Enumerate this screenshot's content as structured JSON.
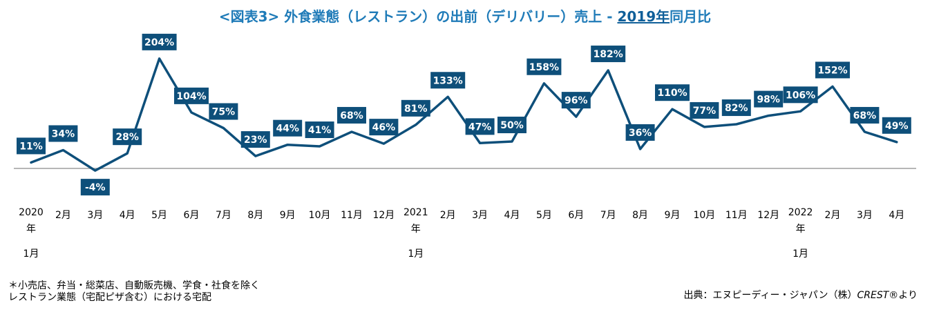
{
  "title": {
    "prefix": "<図表3> 外食業態（レストラン）の出前（デリバリー）売上 - ",
    "highlight": "2019年",
    "suffix": "同月比"
  },
  "footnote": {
    "line1": "＊小売店、弁当・総菜店、自動販売機、学食・社食を除く",
    "line2": "レストラン業態（宅配ピザ含む）における宅配"
  },
  "source": {
    "prefix": "出典：エヌピーディー・ジャパン（株）",
    "brand": "CREST",
    "suffix": "®より"
  },
  "colors": {
    "line": "#0e4f7a",
    "label_bg": "#0e4f7a",
    "label_text": "#ffffff",
    "title": "#1f7bb8",
    "baseline": "#9e9e9e"
  },
  "chart_data": {
    "type": "line",
    "categories": [
      "2020年1月",
      "2月",
      "3月",
      "4月",
      "5月",
      "6月",
      "7月",
      "8月",
      "9月",
      "10月",
      "11月",
      "12月",
      "2021年1月",
      "2月",
      "3月",
      "4月",
      "5月",
      "6月",
      "7月",
      "8月",
      "9月",
      "10月",
      "11月",
      "12月",
      "2022年1月",
      "2月",
      "3月",
      "4月"
    ],
    "tick_labels": [
      [
        "2020",
        "年",
        "1月"
      ],
      [
        "2月"
      ],
      [
        "3月"
      ],
      [
        "4月"
      ],
      [
        "5月"
      ],
      [
        "6月"
      ],
      [
        "7月"
      ],
      [
        "8月"
      ],
      [
        "9月"
      ],
      [
        "10月"
      ],
      [
        "11月"
      ],
      [
        "12月"
      ],
      [
        "2021",
        "年",
        "1月"
      ],
      [
        "2月"
      ],
      [
        "3月"
      ],
      [
        "4月"
      ],
      [
        "5月"
      ],
      [
        "6月"
      ],
      [
        "7月"
      ],
      [
        "8月"
      ],
      [
        "9月"
      ],
      [
        "10月"
      ],
      [
        "11月"
      ],
      [
        "12月"
      ],
      [
        "2022",
        "年",
        "1月"
      ],
      [
        "2月"
      ],
      [
        "3月"
      ],
      [
        "4月"
      ]
    ],
    "values": [
      11,
      34,
      -4,
      28,
      204,
      104,
      75,
      23,
      44,
      41,
      68,
      46,
      81,
      133,
      47,
      50,
      158,
      96,
      182,
      36,
      110,
      77,
      82,
      98,
      106,
      152,
      68,
      49
    ],
    "data_labels": [
      "11%",
      "34%",
      "-4%",
      "28%",
      "204%",
      "104%",
      "75%",
      "23%",
      "44%",
      "41%",
      "68%",
      "46%",
      "81%",
      "133%",
      "47%",
      "50%",
      "158%",
      "96%",
      "182%",
      "36%",
      "110%",
      "77%",
      "82%",
      "98%",
      "106%",
      "152%",
      "68%",
      "49%"
    ],
    "label_positions": [
      "above",
      "above",
      "below",
      "above",
      "above",
      "above",
      "above",
      "above",
      "above",
      "above",
      "above",
      "above",
      "above",
      "above",
      "above",
      "above",
      "above",
      "above",
      "above",
      "above",
      "above",
      "above",
      "above",
      "above",
      "above",
      "above",
      "above",
      "above"
    ],
    "unit": "%",
    "ylim": [
      -10,
      210
    ],
    "grid": false,
    "legend": "none"
  }
}
